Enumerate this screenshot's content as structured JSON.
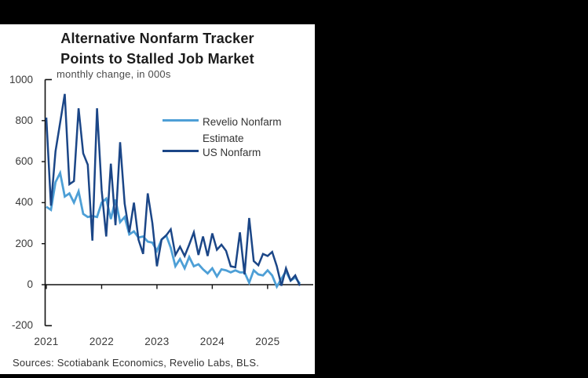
{
  "frame": {
    "background_color": "#000000",
    "panel_color": "#ffffff"
  },
  "header": {
    "title_line1": "Alternative Nonfarm Tracker",
    "title_line2": "Points to Stalled Job Market",
    "subtitle": "monthly change, in 000s"
  },
  "legend": {
    "entries": [
      {
        "label_line1": "Revelio Nonfarm",
        "label_line2": "Estimate",
        "color": "#4D9FD6"
      },
      {
        "label_line1": "US Nonfarm",
        "label_line2": "",
        "color": "#1B4687"
      }
    ]
  },
  "footer": {
    "source": "Sources: Scotiabank Economics, Revelio Labs, BLS."
  },
  "chart_data": {
    "type": "line",
    "title": "Alternative Nonfarm Tracker Points to Stalled Job Market",
    "subtitle": "monthly change, in 000s",
    "x_unit": "month",
    "x_start": "2021-01",
    "x_end": "2025-08",
    "x_tick_labels": [
      "2021",
      "2022",
      "2023",
      "2024",
      "2025"
    ],
    "x_tick_years": [
      2021,
      2022,
      2023,
      2024,
      2025
    ],
    "ylim": [
      -200,
      1000
    ],
    "y_ticks": [
      1000,
      800,
      600,
      400,
      200,
      0,
      -200
    ],
    "grid": false,
    "legend_position": "upper center",
    "axis_color": "#111111",
    "series": [
      {
        "name": "Revelio Nonfarm Estimate",
        "color": "#4D9FD6",
        "values": [
          380,
          365,
          500,
          545,
          430,
          445,
          400,
          455,
          345,
          330,
          335,
          330,
          400,
          420,
          320,
          415,
          305,
          330,
          245,
          260,
          230,
          235,
          210,
          205,
          165,
          220,
          240,
          180,
          90,
          125,
          80,
          135,
          90,
          100,
          75,
          55,
          80,
          40,
          75,
          70,
          60,
          70,
          60,
          60,
          10,
          70,
          50,
          45,
          70,
          45,
          -10,
          30,
          65,
          20,
          35,
          5
        ]
      },
      {
        "name": "US Nonfarm",
        "color": "#1B4687",
        "values": [
          815,
          385,
          650,
          790,
          930,
          490,
          505,
          860,
          640,
          585,
          215,
          860,
          460,
          235,
          590,
          290,
          695,
          395,
          255,
          400,
          220,
          150,
          445,
          300,
          90,
          220,
          240,
          270,
          145,
          185,
          140,
          195,
          255,
          145,
          235,
          140,
          250,
          170,
          195,
          165,
          90,
          85,
          255,
          50,
          325,
          115,
          95,
          150,
          140,
          160,
          90,
          -5,
          80,
          20,
          45,
          -5
        ]
      }
    ]
  }
}
